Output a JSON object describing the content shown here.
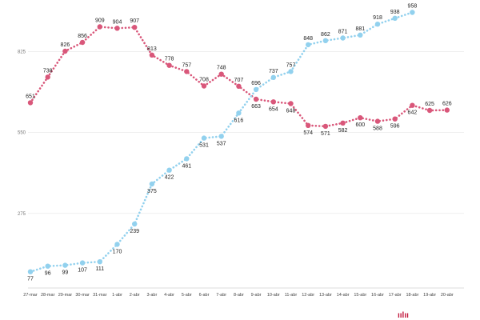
{
  "colors": {
    "series_a": "#d9577a",
    "series_b": "#92d1ee",
    "logo": "#c2183c"
  },
  "logo_glyph": "ıılıı",
  "chart_data": {
    "type": "line",
    "title": "",
    "xlabel": "",
    "ylabel": "",
    "ylim": [
      0,
      1000
    ],
    "yticks": [
      275,
      550,
      825
    ],
    "grid": true,
    "legend": "none",
    "categories": [
      "27-mar",
      "28-mar",
      "29-mar",
      "30-mar",
      "31-mar",
      "1-abr",
      "2-abr",
      "3-abr",
      "4-abr",
      "5-abr",
      "6-abr",
      "7-abr",
      "8-abr",
      "9-abr",
      "10-abr",
      "11-abr",
      "12-abr",
      "13-abr",
      "14-abr",
      "15-abr",
      "16-abr",
      "17-abr",
      "18-abr",
      "19-abr",
      "20-abr"
    ],
    "series": [
      {
        "color": "#d9577a",
        "values": [
          651,
          738,
          826,
          856,
          909,
          904,
          907,
          813,
          778,
          757,
          708,
          748,
          707,
          663,
          654,
          648,
          574,
          571,
          582,
          600,
          588,
          596,
          642,
          625,
          626
        ]
      },
      {
        "color": "#92d1ee",
        "values": [
          77,
          96,
          99,
          107,
          111,
          170,
          239,
          375,
          422,
          461,
          531,
          537,
          616,
          696,
          737,
          757,
          848,
          862,
          871,
          881,
          918,
          938,
          958,
          null,
          null
        ]
      }
    ]
  }
}
